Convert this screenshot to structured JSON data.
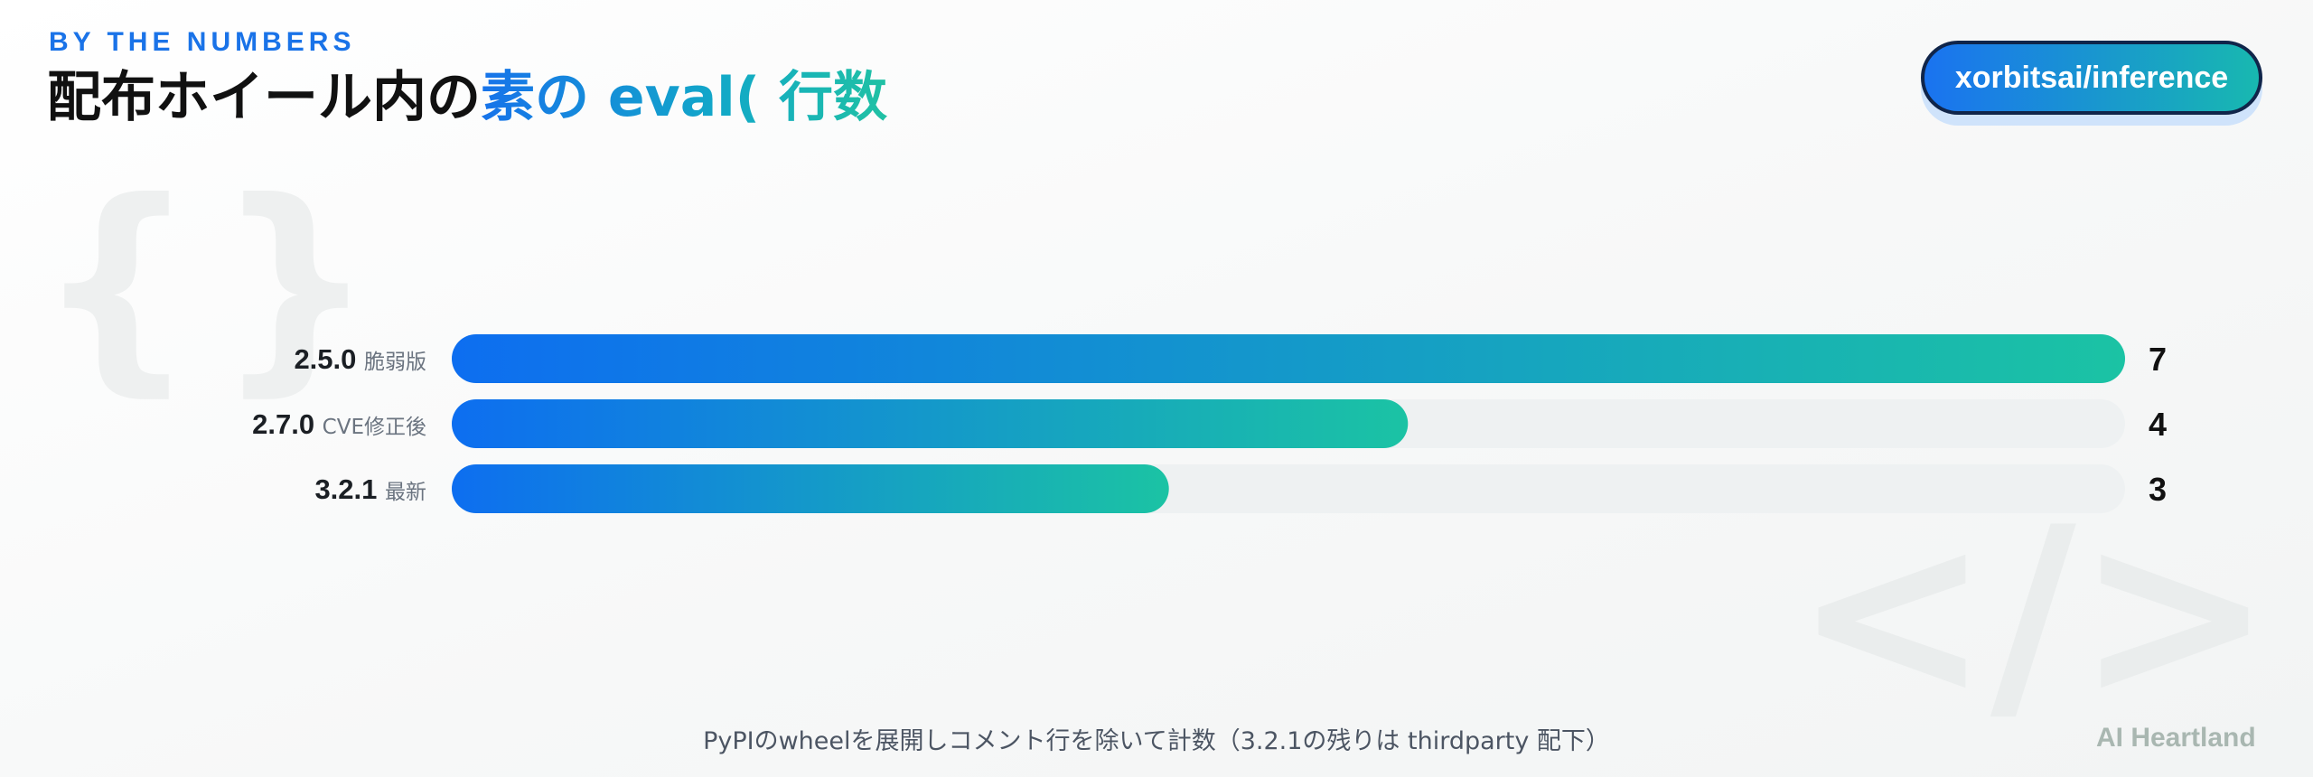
{
  "header": {
    "kicker": "BY THE NUMBERS",
    "title_plain": "配布ホイール内の",
    "title_accent": "素の eval( 行数"
  },
  "badge": {
    "repo": "xorbitsai/inference"
  },
  "chart_data": {
    "type": "bar",
    "orientation": "horizontal",
    "categories": [
      "2.5.0",
      "2.7.0",
      "3.2.1"
    ],
    "category_notes": [
      "脆弱版",
      "CVE修正後",
      "最新"
    ],
    "values": [
      7,
      4,
      3
    ],
    "xlim": [
      0,
      7
    ],
    "grid": false,
    "legend": "none",
    "colors": {
      "bar_start": "#0d6ef0",
      "bar_end": "#1bc3a4",
      "track": "#eef1f2"
    }
  },
  "footnote": "PyPIのwheelを展開しコメント行を除いて計数（3.2.1の残りは thirdparty 配下）",
  "brand": "AI Heartland",
  "decorations": {
    "braces_text": "{}",
    "tag_text": "</>"
  }
}
